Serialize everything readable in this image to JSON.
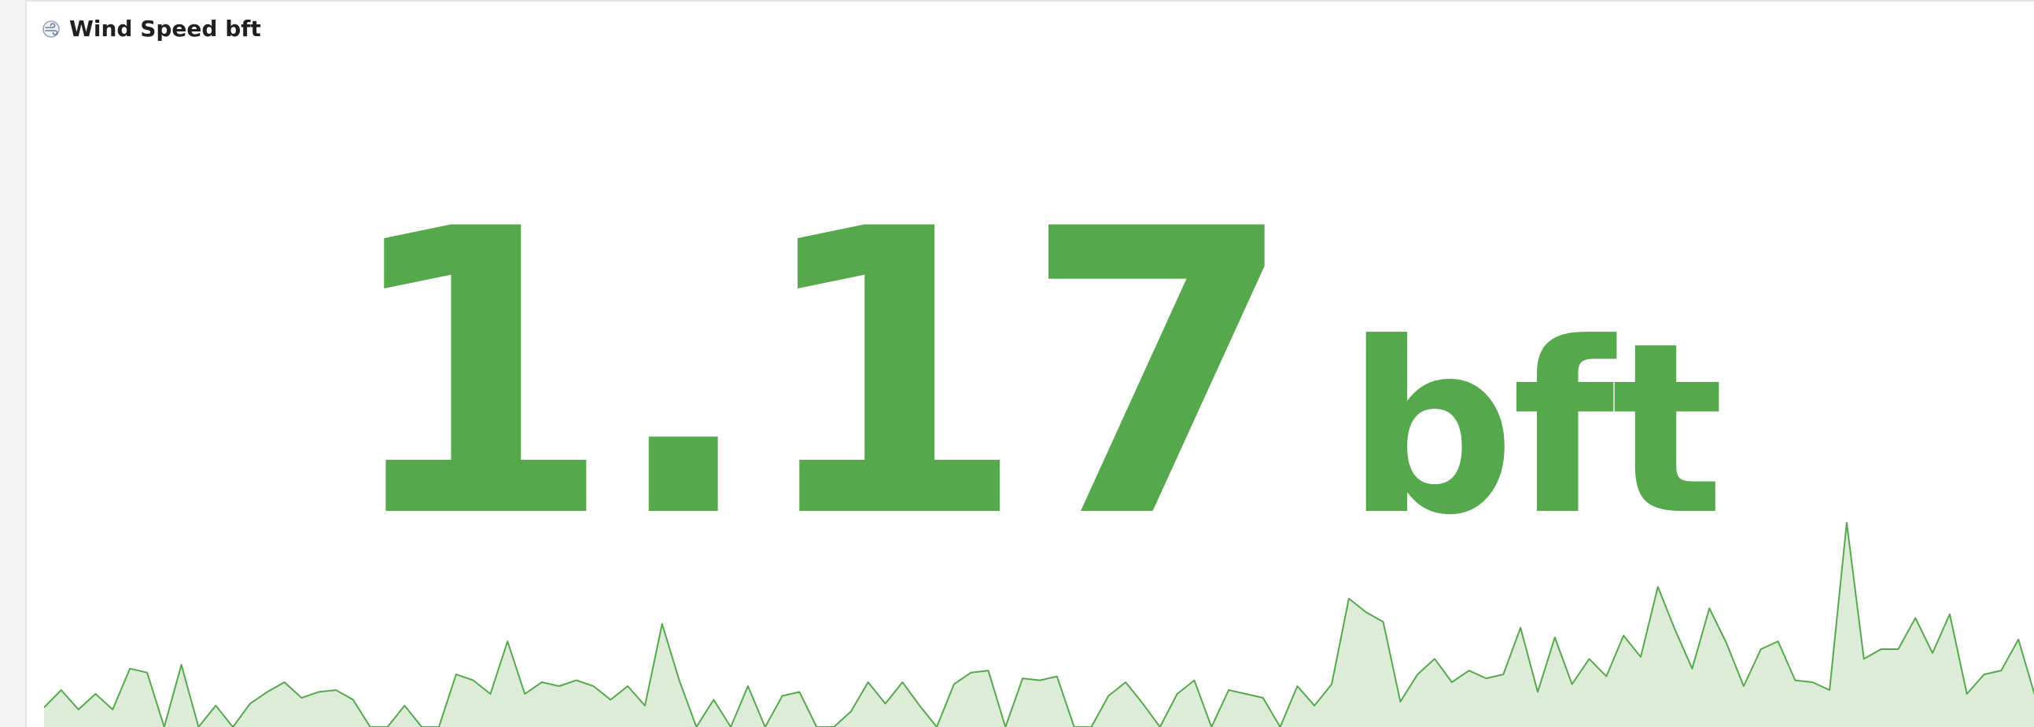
{
  "panel": {
    "title": "Wind Speed bft",
    "icon": "cloud-wind-icon"
  },
  "stat": {
    "value": "1.17",
    "unit": "bft",
    "color": "#56a84c",
    "fill_color": "#dcecd8"
  },
  "sparkline": {
    "values": [
      1.0,
      1.9,
      0.9,
      1.7,
      0.9,
      3.0,
      2.8,
      0.0,
      3.2,
      0.0,
      1.1,
      0.0,
      1.2,
      1.8,
      2.3,
      1.5,
      1.8,
      1.9,
      1.4,
      0.0,
      0.0,
      1.1,
      0.0,
      0.0,
      2.7,
      2.4,
      1.7,
      4.4,
      1.7,
      2.3,
      2.1,
      2.4,
      2.1,
      1.4,
      2.1,
      1.1,
      5.3,
      2.4,
      0.0,
      1.4,
      0.0,
      2.1,
      0.0,
      1.6,
      1.8,
      0.0,
      0.0,
      0.8,
      2.3,
      1.2,
      2.3,
      1.1,
      0.0,
      2.2,
      2.8,
      2.9,
      0.0,
      2.5,
      2.4,
      2.6,
      0.0,
      0.0,
      1.6,
      2.3,
      1.2,
      0.0,
      1.7,
      2.4,
      0.0,
      1.9,
      1.7,
      1.5,
      0.0,
      2.1,
      1.1,
      2.2,
      6.6,
      5.9,
      5.4,
      1.3,
      2.7,
      3.5,
      2.3,
      2.9,
      2.5,
      2.7,
      5.1,
      1.8,
      4.6,
      2.2,
      3.5,
      2.6,
      4.7,
      3.6,
      7.2,
      5.0,
      3.0,
      6.1,
      4.3,
      2.1,
      4.0,
      4.4,
      2.4,
      2.3,
      1.9,
      10.5,
      3.5,
      4.0,
      4.0,
      5.6,
      3.8,
      5.8,
      1.7,
      2.7,
      2.9,
      4.5,
      1.5
    ]
  }
}
